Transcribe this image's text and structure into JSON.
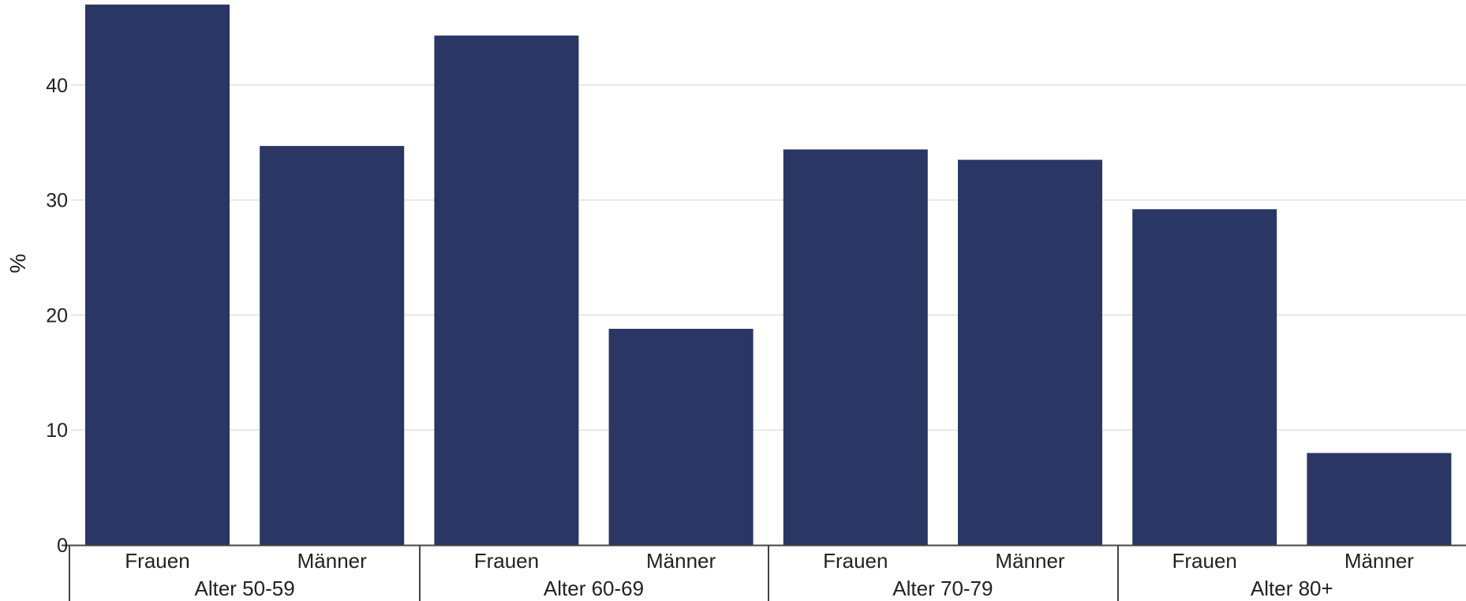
{
  "chart_data": {
    "type": "bar",
    "title": "",
    "xlabel": "",
    "ylabel": "%",
    "ylim": [
      0,
      47
    ],
    "yticks": [
      0,
      10,
      20,
      30,
      40
    ],
    "grid": true,
    "legend": "none",
    "bar_color": "#2a3663",
    "groups": [
      {
        "label": "Alter 50-59",
        "categories": [
          "Frauen",
          "Männer"
        ],
        "values": [
          47.0,
          34.7
        ]
      },
      {
        "label": "Alter 60-69",
        "categories": [
          "Frauen",
          "Männer"
        ],
        "values": [
          44.3,
          18.8
        ]
      },
      {
        "label": "Alter 70-79",
        "categories": [
          "Frauen",
          "Männer"
        ],
        "values": [
          34.4,
          33.5
        ]
      },
      {
        "label": "Alter 80+",
        "categories": [
          "Frauen",
          "Männer"
        ],
        "values": [
          29.2,
          8.0
        ]
      }
    ]
  }
}
